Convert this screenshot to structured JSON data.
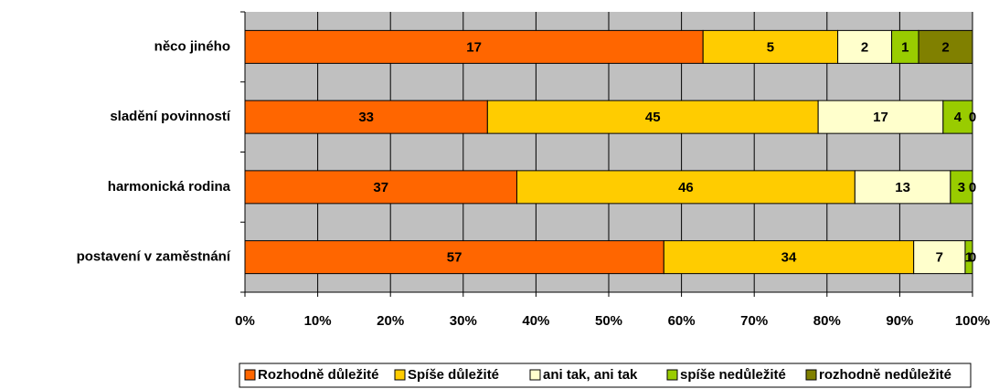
{
  "chart_data": {
    "type": "stacked_bar_100_horizontal",
    "categories": [
      "něco jiného",
      "sladění povinností",
      "harmonická rodina",
      "postavení v zaměstnání"
    ],
    "series": [
      {
        "name": "Rozhodně důležité",
        "color": "#ff6600",
        "values": [
          17,
          33,
          37,
          57
        ]
      },
      {
        "name": "Spíše důležité",
        "color": "#ffcc00",
        "values": [
          5,
          45,
          46,
          34
        ]
      },
      {
        "name": "ani tak, ani tak",
        "color": "#ffffcc",
        "values": [
          2,
          17,
          13,
          7
        ]
      },
      {
        "name": "spíše nedůležité",
        "color": "#99cc00",
        "values": [
          1,
          4,
          3,
          1
        ]
      },
      {
        "name": "rozhodně nedůležité",
        "color": "#808000",
        "values": [
          2,
          0,
          0,
          0
        ]
      }
    ],
    "xlim": [
      0,
      100
    ],
    "xticks": [
      {
        "value": 0,
        "label": "0%"
      },
      {
        "value": 10,
        "label": "10%"
      },
      {
        "value": 20,
        "label": "20%"
      },
      {
        "value": 30,
        "label": "30%"
      },
      {
        "value": 40,
        "label": "40%"
      },
      {
        "value": 50,
        "label": "50%"
      },
      {
        "value": 60,
        "label": "60%"
      },
      {
        "value": 70,
        "label": "70%"
      },
      {
        "value": 80,
        "label": "80%"
      },
      {
        "value": 90,
        "label": "90%"
      },
      {
        "value": 100,
        "label": "100%"
      }
    ],
    "grid": true,
    "legend": "bottom",
    "background": "#c0c0c0"
  }
}
